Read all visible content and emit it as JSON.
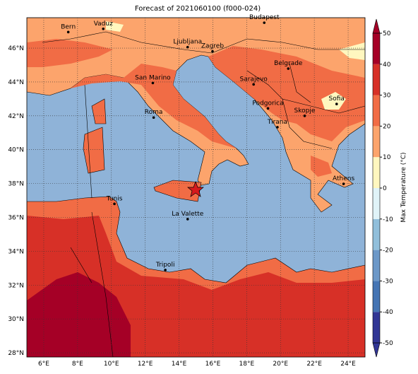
{
  "map": {
    "title": "Forecast of 2021060100 (f000-024)",
    "lonlim": [
      5,
      25
    ],
    "latlim": [
      27.75,
      47.8
    ],
    "xticks": [
      {
        "value": 6,
        "label": "6°E"
      },
      {
        "value": 8,
        "label": "8°E"
      },
      {
        "value": 10,
        "label": "10°E"
      },
      {
        "value": 12,
        "label": "12°E"
      },
      {
        "value": 14,
        "label": "14°E"
      },
      {
        "value": 16,
        "label": "16°E"
      },
      {
        "value": 18,
        "label": "18°E"
      },
      {
        "value": 20,
        "label": "20°E"
      },
      {
        "value": 22,
        "label": "22°E"
      },
      {
        "value": 24,
        "label": "24°E"
      }
    ],
    "yticks": [
      {
        "value": 28,
        "label": "28°N"
      },
      {
        "value": 30,
        "label": "30°N"
      },
      {
        "value": 32,
        "label": "32°N"
      },
      {
        "value": 34,
        "label": "34°N"
      },
      {
        "value": 36,
        "label": "36°N"
      },
      {
        "value": 38,
        "label": "38°N"
      },
      {
        "value": 40,
        "label": "40°N"
      },
      {
        "value": 42,
        "label": "42°N"
      },
      {
        "value": 44,
        "label": "44°N"
      },
      {
        "value": 46,
        "label": "46°N"
      }
    ],
    "cities": [
      {
        "name": "Bern",
        "lon": 7.45,
        "lat": 46.95
      },
      {
        "name": "Vaduz",
        "lon": 9.52,
        "lat": 47.14
      },
      {
        "name": "Budapest",
        "lon": 19.04,
        "lat": 47.5
      },
      {
        "name": "Ljubljana",
        "lon": 14.51,
        "lat": 46.06
      },
      {
        "name": "Zagreb",
        "lon": 15.98,
        "lat": 45.81
      },
      {
        "name": "San Marino",
        "lon": 12.45,
        "lat": 43.94
      },
      {
        "name": "Belgrade",
        "lon": 20.46,
        "lat": 44.79
      },
      {
        "name": "Sarajevo",
        "lon": 18.41,
        "lat": 43.86
      },
      {
        "name": "Sofia",
        "lon": 23.32,
        "lat": 42.7
      },
      {
        "name": "Roma",
        "lon": 12.5,
        "lat": 41.9
      },
      {
        "name": "Podgorica",
        "lon": 19.26,
        "lat": 42.44
      },
      {
        "name": "Skopje",
        "lon": 21.43,
        "lat": 42.0
      },
      {
        "name": "Tirana",
        "lon": 19.82,
        "lat": 41.33
      },
      {
        "name": "Athens",
        "lon": 23.73,
        "lat": 37.98
      },
      {
        "name": "Tunis",
        "lon": 10.18,
        "lat": 36.8
      },
      {
        "name": "La Valette",
        "lon": 14.51,
        "lat": 35.9
      },
      {
        "name": "Tripoli",
        "lon": 13.19,
        "lat": 32.89
      }
    ],
    "colorbar": {
      "label": "Max Temperature (°C)",
      "lim": [
        -50,
        50
      ],
      "ticks": [
        -50,
        -40,
        -30,
        -20,
        -10,
        0,
        10,
        20,
        30,
        40,
        50
      ],
      "colors": [
        "#313695",
        "#4575b4",
        "#6c98c8",
        "#91bfdb",
        "#e0f3f8",
        "#fff7bf",
        "#fca46c",
        "#f16c45",
        "#d73027",
        "#a50026"
      ]
    }
  }
}
